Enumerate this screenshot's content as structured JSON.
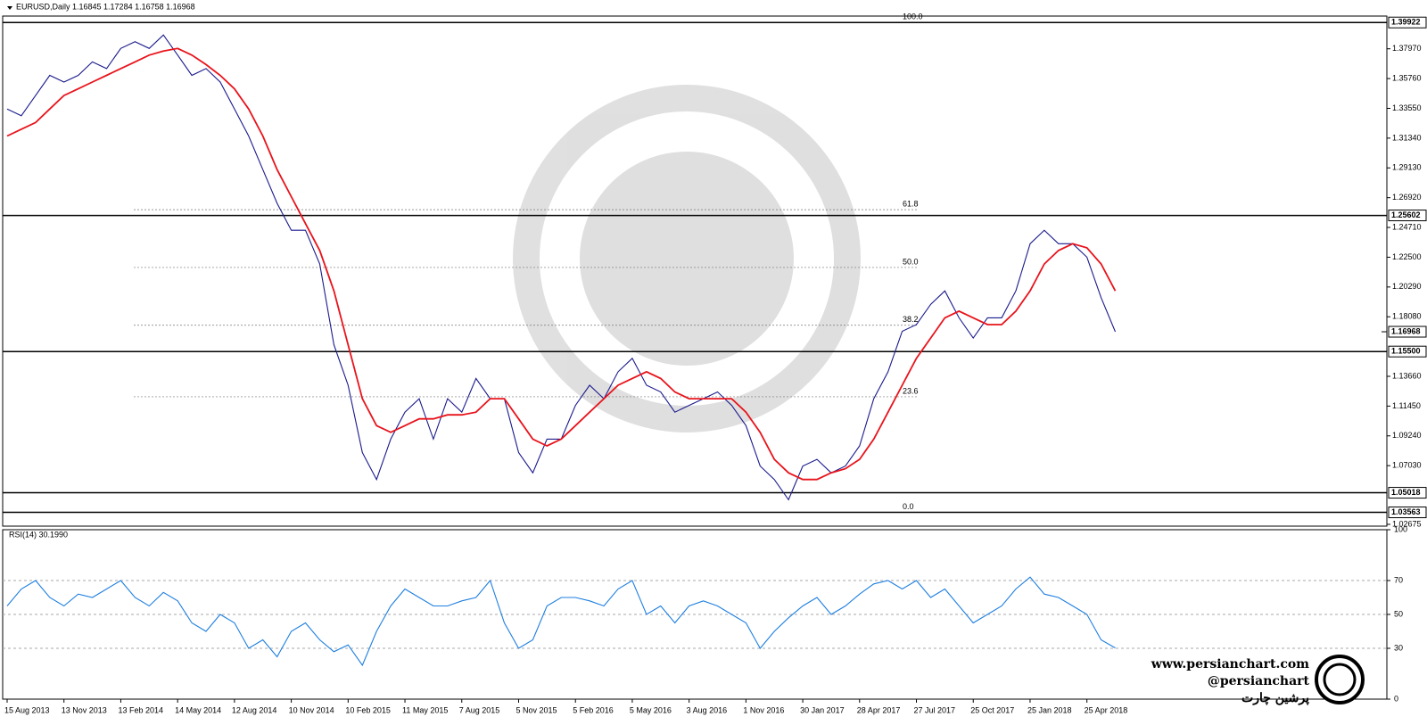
{
  "chart_data": [
    {
      "type": "line",
      "title": "EURUSD,Daily  1.16845 1.17284 1.16758 1.16968",
      "categories": [
        "15 Aug 2013",
        null,
        null,
        null,
        "13 Nov 2013",
        null,
        null,
        null,
        "13 Feb 2014",
        null,
        null,
        null,
        "14 May 2014",
        null,
        null,
        null,
        "12 Aug 2014",
        null,
        null,
        null,
        "10 Nov 2014",
        null,
        null,
        null,
        "10 Feb 2015",
        null,
        null,
        null,
        "11 May 2015",
        null,
        null,
        null,
        "7 Aug 2015",
        null,
        null,
        null,
        "5 Nov 2015",
        null,
        null,
        null,
        "5 Feb 2016",
        null,
        null,
        null,
        "5 May 2016",
        null,
        null,
        null,
        "3 Aug 2016",
        null,
        null,
        null,
        "1 Nov 2016",
        null,
        null,
        null,
        "30 Jan 2017",
        null,
        null,
        null,
        "28 Apr 2017",
        null,
        null,
        null,
        "27 Jul 2017",
        null,
        null,
        null,
        "25 Oct 2017",
        null,
        null,
        null,
        "25 Jan 2018",
        null,
        null,
        null,
        "25 Apr 2018",
        null,
        null
      ],
      "series": [
        {
          "color": "#1a1a8c",
          "values": [
            1.335,
            1.33,
            1.345,
            1.36,
            1.355,
            1.36,
            1.37,
            1.365,
            1.38,
            1.385,
            1.38,
            1.39,
            1.375,
            1.36,
            1.365,
            1.355,
            1.335,
            1.315,
            1.29,
            1.265,
            1.245,
            1.245,
            1.22,
            1.16,
            1.13,
            1.08,
            1.06,
            1.09,
            1.11,
            1.12,
            1.09,
            1.12,
            1.11,
            1.135,
            1.12,
            1.12,
            1.08,
            1.065,
            1.09,
            1.09,
            1.115,
            1.13,
            1.12,
            1.14,
            1.15,
            1.13,
            1.125,
            1.11,
            1.115,
            1.12,
            1.125,
            1.115,
            1.1,
            1.07,
            1.06,
            1.045,
            1.07,
            1.075,
            1.065,
            1.07,
            1.085,
            1.12,
            1.14,
            1.17,
            1.175,
            1.19,
            1.2,
            1.18,
            1.165,
            1.18,
            1.18,
            1.2,
            1.235,
            1.245,
            1.235,
            1.235,
            1.225,
            1.195,
            1.16968
          ]
        },
        {
          "color": "#e8131b",
          "values": [
            1.315,
            1.32,
            1.325,
            1.335,
            1.345,
            1.35,
            1.355,
            1.36,
            1.365,
            1.37,
            1.375,
            1.378,
            1.38,
            1.375,
            1.368,
            1.36,
            1.35,
            1.335,
            1.315,
            1.29,
            1.27,
            1.25,
            1.23,
            1.2,
            1.16,
            1.12,
            1.1,
            1.095,
            1.1,
            1.105,
            1.105,
            1.108,
            1.108,
            1.11,
            1.12,
            1.12,
            1.105,
            1.09,
            1.085,
            1.09,
            1.1,
            1.11,
            1.12,
            1.13,
            1.135,
            1.14,
            1.135,
            1.125,
            1.12,
            1.12,
            1.12,
            1.12,
            1.11,
            1.095,
            1.075,
            1.065,
            1.06,
            1.06,
            1.065,
            1.068,
            1.075,
            1.09,
            1.11,
            1.13,
            1.15,
            1.165,
            1.18,
            1.185,
            1.18,
            1.175,
            1.175,
            1.185,
            1.2,
            1.22,
            1.23,
            1.235,
            1.232,
            1.22,
            1.2
          ]
        }
      ],
      "ylim": [
        1.0254,
        1.404
      ],
      "yticks": [
        {
          "value": 1.3797,
          "label": "1.37970"
        },
        {
          "value": 1.3576,
          "label": "1.35760"
        },
        {
          "value": 1.3355,
          "label": "1.33550"
        },
        {
          "value": 1.3134,
          "label": "1.31340"
        },
        {
          "value": 1.2913,
          "label": "1.29130"
        },
        {
          "value": 1.2692,
          "label": "1.26920"
        },
        {
          "value": 1.2471,
          "label": "1.24710"
        },
        {
          "value": 1.225,
          "label": "1.22500"
        },
        {
          "value": 1.2029,
          "label": "1.20290"
        },
        {
          "value": 1.1808,
          "label": "1.18080"
        },
        {
          "value": 1.1366,
          "label": "1.13660"
        },
        {
          "value": 1.1145,
          "label": "1.11450"
        },
        {
          "value": 1.0924,
          "label": "1.09240"
        },
        {
          "value": 1.0703,
          "label": "1.07030"
        },
        {
          "value": 1.02675,
          "label": "1.02675"
        }
      ],
      "levels": [
        {
          "value": 1.39922,
          "label": "1.39922"
        },
        {
          "value": 1.25602,
          "label": "1.25602"
        },
        {
          "value": 1.155,
          "label": "1.15500"
        },
        {
          "value": 1.05018,
          "label": "1.05018"
        },
        {
          "value": 1.03563,
          "label": "1.03563"
        }
      ],
      "last_price": {
        "value": 1.16968,
        "label": "1.16968"
      },
      "fibonacci": [
        {
          "value": 1.39922,
          "label": "100.0"
        },
        {
          "value": 1.2603,
          "label": "61.8"
        },
        {
          "value": 1.2174,
          "label": "50.0"
        },
        {
          "value": 1.1745,
          "label": "38.2"
        },
        {
          "value": 1.1214,
          "label": "23.6"
        },
        {
          "value": 1.03563,
          "label": "0.0"
        }
      ]
    },
    {
      "type": "line",
      "title": "RSI(14) 30.1990",
      "series": [
        {
          "color": "#1e7fe0",
          "values": [
            55,
            65,
            70,
            60,
            55,
            62,
            60,
            65,
            70,
            60,
            55,
            63,
            58,
            45,
            40,
            50,
            45,
            30,
            35,
            25,
            40,
            45,
            35,
            28,
            32,
            20,
            40,
            55,
            65,
            60,
            55,
            55,
            58,
            60,
            70,
            45,
            30,
            35,
            55,
            60,
            60,
            58,
            55,
            65,
            70,
            50,
            55,
            45,
            55,
            58,
            55,
            50,
            45,
            30,
            40,
            48,
            55,
            60,
            50,
            55,
            62,
            68,
            70,
            65,
            70,
            60,
            65,
            55,
            45,
            50,
            55,
            65,
            72,
            62,
            60,
            55,
            50,
            35,
            30.199
          ]
        }
      ],
      "ylim": [
        0,
        100
      ],
      "yticks": [
        0,
        30,
        50,
        70,
        100
      ],
      "levels": [
        30,
        50,
        70
      ]
    }
  ],
  "branding": {
    "site": "www.persianchart.com",
    "handle": "@persianchart",
    "name": "پرشین چارت"
  }
}
